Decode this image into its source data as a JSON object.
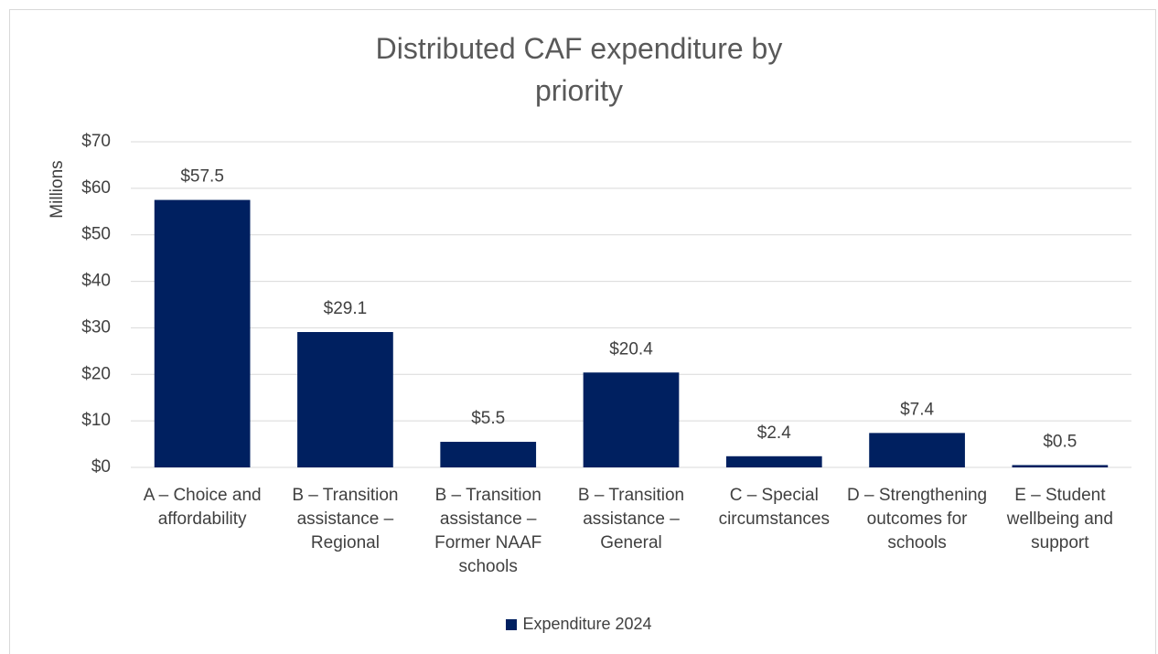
{
  "chart_data": {
    "type": "bar",
    "title": "Distributed CAF expenditure by priority",
    "y_label": "Millions",
    "categories": [
      "A – Choice and affordability",
      "B – Transition assistance – Regional",
      "B – Transition assistance – Former NAAF schools",
      "B – Transition assistance – General",
      "C – Special circumstances",
      "D – Strengthening outcomes for schools",
      "E – Student wellbeing and support"
    ],
    "series": [
      {
        "name": "Expenditure 2024",
        "color": "#002060",
        "values": [
          57.5,
          29.1,
          5.5,
          20.4,
          2.4,
          7.4,
          0.5
        ],
        "value_labels": [
          "$57.5",
          "$29.1",
          "$5.5",
          "$20.4",
          "$2.4",
          "$7.4",
          "$0.5"
        ]
      }
    ],
    "ylim": [
      0,
      70
    ],
    "yticks": [
      {
        "value": 0,
        "label": "$0"
      },
      {
        "value": 10,
        "label": "$10"
      },
      {
        "value": 20,
        "label": "$20"
      },
      {
        "value": 30,
        "label": "$30"
      },
      {
        "value": 40,
        "label": "$40"
      },
      {
        "value": 50,
        "label": "$50"
      },
      {
        "value": 60,
        "label": "$60"
      },
      {
        "value": 70,
        "label": "$70"
      }
    ],
    "grid": true,
    "legend": "bottom"
  }
}
